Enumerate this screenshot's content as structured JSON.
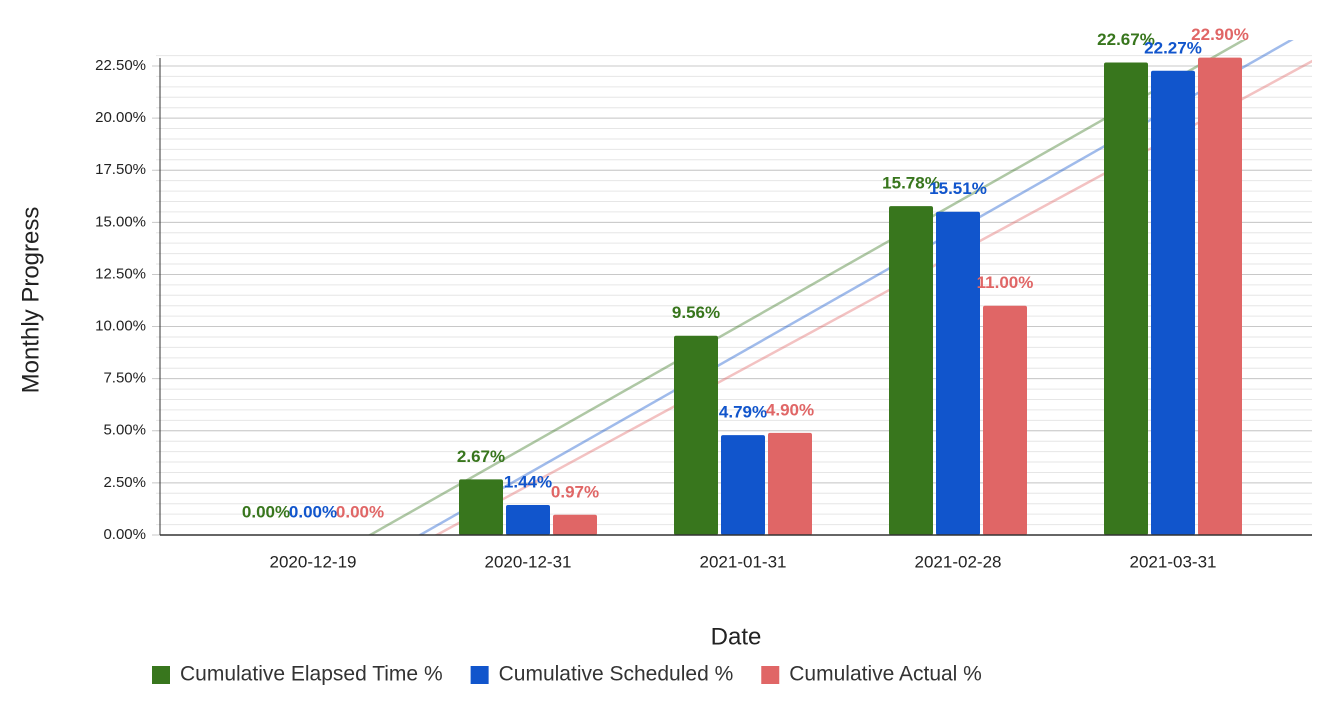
{
  "chart_data": {
    "type": "bar",
    "x_label": "Date",
    "y_label": "Monthly Progress",
    "categories": [
      "2020-12-19",
      "2020-12-31",
      "2021-01-31",
      "2021-02-28",
      "2021-03-31"
    ],
    "series": [
      {
        "name": "Cumulative Elapsed Time %",
        "color": "#38761d",
        "values": [
          0,
          2.67,
          9.56,
          15.78,
          22.67
        ],
        "value_labels": [
          "0.00%",
          "2.67%",
          "9.56%",
          "15.78%",
          "22.67%"
        ]
      },
      {
        "name": "Cumulative Scheduled %",
        "color": "#1155cc",
        "values": [
          0,
          1.44,
          4.79,
          15.51,
          22.27
        ],
        "value_labels": [
          "0.00%",
          "1.44%",
          "4.79%",
          "15.51%",
          "22.27%"
        ]
      },
      {
        "name": "Cumulative Actual %",
        "color": "#e06666",
        "values": [
          0,
          0.97,
          4.9,
          11.0,
          22.9
        ],
        "value_labels": [
          "0.00%",
          "0.97%",
          "4.90%",
          "11.00%",
          "22.90%"
        ]
      }
    ],
    "ylim": [
      0,
      23
    ],
    "yticks": [
      {
        "value": 0,
        "label": "0.00%"
      },
      {
        "value": 2.5,
        "label": "2.50%"
      },
      {
        "value": 5,
        "label": "5.00%"
      },
      {
        "value": 7.5,
        "label": "7.50%"
      },
      {
        "value": 10,
        "label": "10.00%"
      },
      {
        "value": 12.5,
        "label": "12.50%"
      },
      {
        "value": 15,
        "label": "15.00%"
      },
      {
        "value": 17.5,
        "label": "17.50%"
      },
      {
        "value": 20,
        "label": "20.00%"
      },
      {
        "value": 22.5,
        "label": "22.50%"
      }
    ],
    "grid": true,
    "trendlines": true,
    "legend": "bottom"
  }
}
